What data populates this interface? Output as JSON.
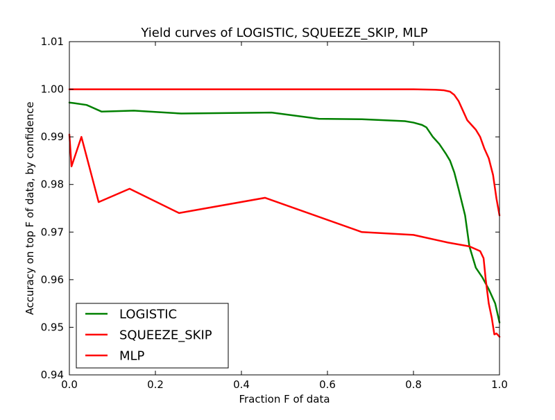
{
  "chart_data": {
    "type": "line",
    "title": "Yield curves of LOGISTIC, SQUEEZE_SKIP, MLP",
    "xlabel": "Fraction F of data",
    "ylabel": "Accuracy on top F of data, by confidence",
    "xlim": [
      0.0,
      1.0
    ],
    "ylim": [
      0.94,
      1.01
    ],
    "xticks": [
      0.0,
      0.2,
      0.4,
      0.6,
      0.8,
      1.0
    ],
    "xtick_labels": [
      "0.0",
      "0.2",
      "0.4",
      "0.6",
      "0.8",
      "1.0"
    ],
    "yticks": [
      0.94,
      0.95,
      0.96,
      0.97,
      0.98,
      0.99,
      1.0,
      1.01
    ],
    "ytick_labels": [
      "0.94",
      "0.95",
      "0.96",
      "0.97",
      "0.98",
      "0.99",
      "1.00",
      "1.01"
    ],
    "grid": false,
    "legend_position": "bottom-left",
    "series": [
      {
        "name": "LOGISTIC",
        "color": "#008000",
        "x": [
          0.0,
          0.01,
          0.04,
          0.075,
          0.15,
          0.26,
          0.47,
          0.58,
          0.68,
          0.78,
          0.8,
          0.82,
          0.83,
          0.845,
          0.86,
          0.875,
          0.885,
          0.895,
          0.905,
          0.92,
          0.93,
          0.945,
          0.96,
          0.975,
          0.99,
          1.0
        ],
        "values": [
          0.9972,
          0.9971,
          0.9967,
          0.9953,
          0.9955,
          0.9949,
          0.9951,
          0.9938,
          0.9937,
          0.9933,
          0.993,
          0.9925,
          0.992,
          0.99,
          0.9885,
          0.9865,
          0.985,
          0.9825,
          0.979,
          0.9735,
          0.967,
          0.9625,
          0.9605,
          0.958,
          0.955,
          0.951
        ]
      },
      {
        "name": "SQUEEZE_SKIP",
        "color": "#ff0000",
        "x": [
          0.0,
          0.2,
          0.4,
          0.6,
          0.8,
          0.85,
          0.87,
          0.885,
          0.895,
          0.905,
          0.915,
          0.925,
          0.935,
          0.945,
          0.955,
          0.965,
          0.975,
          0.985,
          0.993,
          1.0
        ],
        "values": [
          1.0,
          1.0,
          1.0,
          1.0,
          1.0,
          0.9999,
          0.9998,
          0.9995,
          0.9988,
          0.9975,
          0.9955,
          0.9935,
          0.9925,
          0.9915,
          0.99,
          0.9875,
          0.9855,
          0.982,
          0.977,
          0.9735
        ]
      },
      {
        "name": "MLP",
        "color": "#ff0000",
        "x": [
          0.0,
          0.005,
          0.028,
          0.068,
          0.14,
          0.255,
          0.455,
          0.68,
          0.8,
          0.88,
          0.93,
          0.955,
          0.963,
          0.968,
          0.975,
          0.982,
          0.988,
          0.993,
          0.997,
          1.0
        ],
        "values": [
          0.9905,
          0.9838,
          0.99,
          0.9763,
          0.9791,
          0.974,
          0.9772,
          0.97,
          0.9694,
          0.9678,
          0.967,
          0.966,
          0.9645,
          0.96,
          0.955,
          0.952,
          0.9485,
          0.9487,
          0.9483,
          0.948
        ]
      }
    ]
  }
}
